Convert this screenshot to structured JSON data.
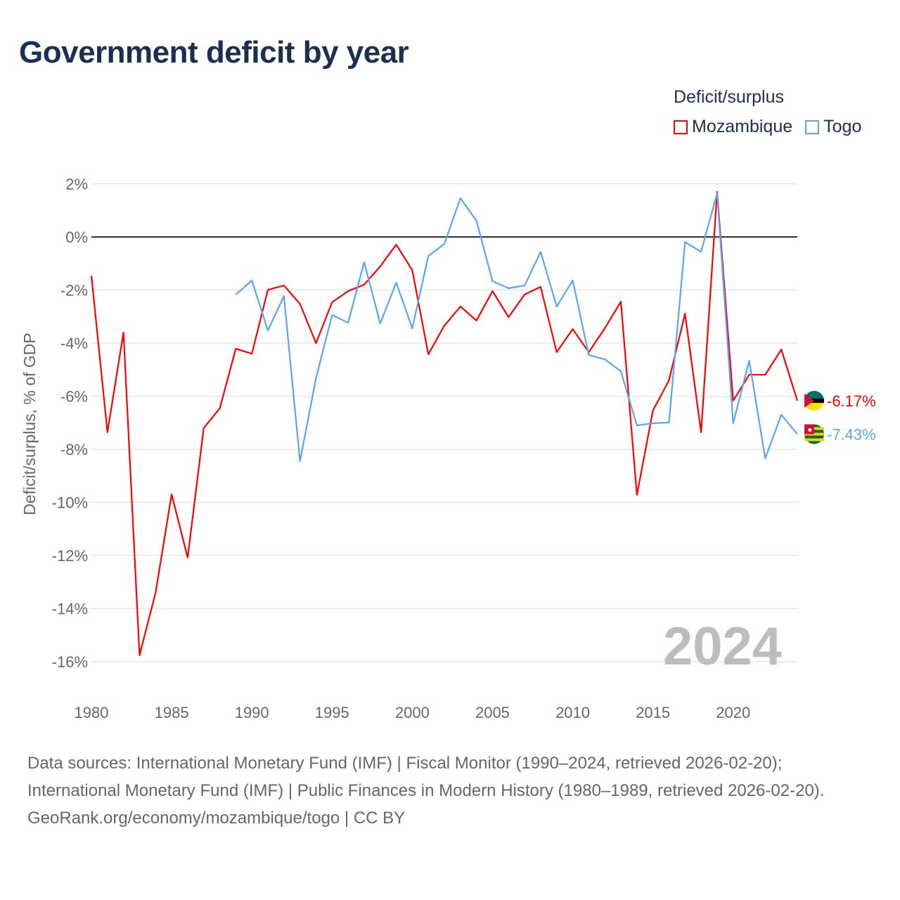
{
  "title": "Government deficit by year",
  "legend": {
    "title": "Deficit/surplus"
  },
  "footer": {
    "sources": "Data sources: International Monetary Fund (IMF) | Fiscal Monitor (1990–2024, retrieved 2026-02-20); International Monetary Fund (IMF) | Public Finances in Modern History (1980–1989, retrieved 2026-02-20).",
    "credit": "GeoRank.org/economy/mozambique/togo | CC BY"
  },
  "chart_data": {
    "type": "line",
    "title": "Government deficit by year",
    "ylabel": "Deficit/surplus, % of GDP",
    "xlabel": "",
    "xlim": [
      1980,
      2024
    ],
    "ylim": [
      -16,
      2
    ],
    "x_ticks": [
      1980,
      1985,
      1990,
      1995,
      2000,
      2005,
      2010,
      2015,
      2020
    ],
    "y_ticks": [
      2,
      0,
      -2,
      -4,
      -6,
      -8,
      -10,
      -12,
      -14,
      -16
    ],
    "y_tick_labels": [
      "2%",
      "0%",
      "-2%",
      "-4%",
      "-6%",
      "-8%",
      "-10%",
      "-12%",
      "-14%",
      "-16%"
    ],
    "grid": true,
    "legend_position": "top-right",
    "year_watermark": "2024",
    "series": [
      {
        "name": "Mozambique",
        "color": "#ff0000",
        "end_label": "-6.17%",
        "start_year": 1980,
        "values": [
          -1.46,
          -7.36,
          -3.6,
          -15.76,
          -13.4,
          -9.7,
          -12.08,
          -7.2,
          -6.46,
          -4.21,
          -4.4,
          -1.99,
          -1.83,
          -2.52,
          -4.0,
          -2.46,
          -2.04,
          -1.8,
          -1.11,
          -0.29,
          -1.25,
          -4.42,
          -3.34,
          -2.62,
          -3.15,
          -2.04,
          -3.02,
          -2.17,
          -1.88,
          -4.34,
          -3.47,
          -4.34,
          -3.44,
          -2.44,
          -9.72,
          -6.54,
          -5.4,
          -2.89,
          -7.36,
          1.7,
          -6.17,
          -5.19,
          -5.19,
          -4.24,
          -6.17
        ]
      },
      {
        "name": "Togo",
        "color": "#5aa5ef",
        "end_label": "-7.43%",
        "start_year": 1989,
        "values": [
          -2.17,
          -1.64,
          -3.52,
          -2.23,
          -8.45,
          -5.32,
          -2.94,
          -3.23,
          -0.95,
          -3.26,
          -1.72,
          -3.44,
          -0.72,
          -0.26,
          1.46,
          0.61,
          -1.67,
          -1.93,
          -1.83,
          -0.56,
          -2.62,
          -1.64,
          -4.45,
          -4.61,
          -5.06,
          -7.1,
          -7.02,
          -6.99,
          -0.19,
          -0.56,
          1.64,
          -7.02,
          -4.66,
          -8.34,
          -6.7,
          -7.43
        ]
      }
    ]
  }
}
